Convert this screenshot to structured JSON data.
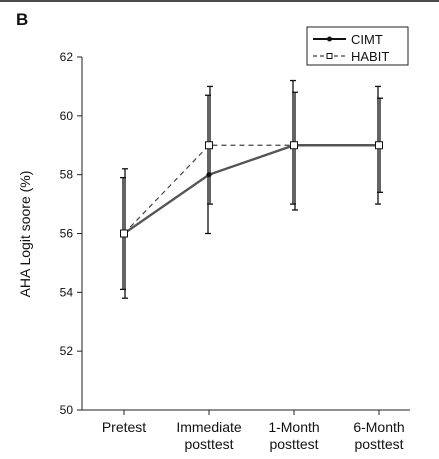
{
  "panel_label": "B",
  "colors": {
    "cimt": "#555555",
    "habit": "#444444",
    "error_bar": "#111111",
    "axis": "#222222"
  },
  "chart_data": {
    "type": "line",
    "categories": [
      [
        "Pretest"
      ],
      [
        "Immediate",
        "posttest"
      ],
      [
        "1-Month",
        "posttest"
      ],
      [
        "6-Month",
        "posttest"
      ]
    ],
    "ylabel": "AHA Logit soore (%)",
    "ylim": [
      50,
      62
    ],
    "yticks": [
      50,
      52,
      54,
      56,
      58,
      60,
      62
    ],
    "grid": false,
    "legend": "top-right",
    "series": [
      {
        "name": "CIMT",
        "style": "solid",
        "marker": "filled-circle",
        "values": [
          56,
          58,
          59,
          59
        ],
        "err_low": [
          53.8,
          57.0,
          56.8,
          57.4
        ],
        "err_high": [
          58.2,
          61.0,
          60.8,
          60.6
        ]
      },
      {
        "name": "HABIT",
        "style": "dashed",
        "marker": "open-square",
        "values": [
          56,
          59,
          59,
          59
        ],
        "err_low": [
          54.1,
          56.0,
          57.0,
          57.0
        ],
        "err_high": [
          57.9,
          60.7,
          61.2,
          61.0
        ]
      }
    ]
  }
}
